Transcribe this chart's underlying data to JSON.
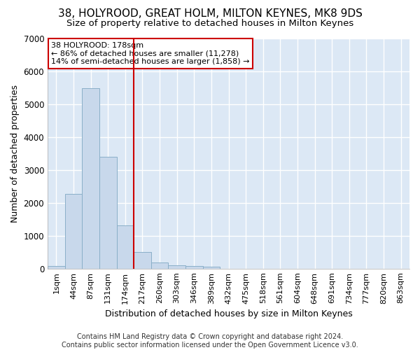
{
  "title": "38, HOLYROOD, GREAT HOLM, MILTON KEYNES, MK8 9DS",
  "subtitle": "Size of property relative to detached houses in Milton Keynes",
  "xlabel": "Distribution of detached houses by size in Milton Keynes",
  "ylabel": "Number of detached properties",
  "footer_line1": "Contains HM Land Registry data © Crown copyright and database right 2024.",
  "footer_line2": "Contains public sector information licensed under the Open Government Licence v3.0.",
  "categories": [
    "1sqm",
    "44sqm",
    "87sqm",
    "131sqm",
    "174sqm",
    "217sqm",
    "260sqm",
    "303sqm",
    "346sqm",
    "389sqm",
    "432sqm",
    "475sqm",
    "518sqm",
    "561sqm",
    "604sqm",
    "648sqm",
    "691sqm",
    "734sqm",
    "777sqm",
    "820sqm",
    "863sqm"
  ],
  "values": [
    70,
    2280,
    5480,
    3400,
    1310,
    510,
    175,
    90,
    70,
    55,
    0,
    0,
    0,
    0,
    0,
    0,
    0,
    0,
    0,
    0,
    0
  ],
  "bar_color": "#c8d8eb",
  "bar_edge_color": "#8aafc8",
  "vline_x": 4.5,
  "vline_color": "#cc0000",
  "annotation_title": "38 HOLYROOD: 178sqm",
  "annotation_line1": "← 86% of detached houses are smaller (11,278)",
  "annotation_line2": "14% of semi-detached houses are larger (1,858) →",
  "annotation_box_color": "#ffffff",
  "annotation_box_edge": "#cc0000",
  "ylim": [
    0,
    7000
  ],
  "plot_bg_color": "#dce8f5",
  "fig_bg_color": "#ffffff",
  "grid_color": "#ffffff",
  "title_fontsize": 11,
  "subtitle_fontsize": 9.5,
  "axis_label_fontsize": 9,
  "tick_fontsize": 8,
  "annotation_fontsize": 8,
  "footer_fontsize": 7
}
